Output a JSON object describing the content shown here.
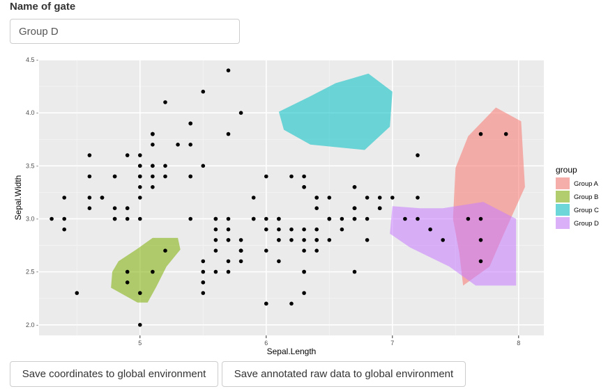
{
  "gate": {
    "label": "Name of gate",
    "value": "Group D"
  },
  "buttons": {
    "save_coordinates": "Save coordinates to global environment",
    "save_raw_data": "Save annotated raw data to global environment"
  },
  "chart_data": {
    "type": "scatter",
    "xlabel": "Sepal.Length",
    "ylabel": "Sepal.Width",
    "xlim": [
      4.2,
      8.2
    ],
    "ylim": [
      1.9,
      4.5
    ],
    "x_ticks": [
      5,
      6,
      7,
      8
    ],
    "x_tick_labels": [
      "5",
      "6",
      "7",
      "8"
    ],
    "y_ticks": [
      2.0,
      2.5,
      3.0,
      3.5,
      4.0,
      4.5
    ],
    "y_tick_labels": [
      "2.0 -",
      "2.5 -",
      "3.0 -",
      "3.5 -",
      "4.0 -",
      "4.5 -"
    ],
    "grid": true,
    "background": "#ebebeb",
    "legend_position": "right",
    "legend_title": "group",
    "points": [
      [
        5.1,
        3.5
      ],
      [
        4.9,
        3.0
      ],
      [
        4.7,
        3.2
      ],
      [
        4.6,
        3.1
      ],
      [
        5.0,
        3.6
      ],
      [
        5.4,
        3.9
      ],
      [
        4.6,
        3.4
      ],
      [
        5.0,
        3.4
      ],
      [
        4.4,
        2.9
      ],
      [
        4.9,
        3.1
      ],
      [
        5.4,
        3.7
      ],
      [
        4.8,
        3.4
      ],
      [
        4.8,
        3.0
      ],
      [
        4.3,
        3.0
      ],
      [
        5.8,
        4.0
      ],
      [
        5.7,
        4.4
      ],
      [
        5.4,
        3.9
      ],
      [
        5.1,
        3.5
      ],
      [
        5.7,
        3.8
      ],
      [
        5.1,
        3.8
      ],
      [
        5.4,
        3.4
      ],
      [
        5.1,
        3.7
      ],
      [
        4.6,
        3.6
      ],
      [
        5.1,
        3.3
      ],
      [
        4.8,
        3.4
      ],
      [
        5.0,
        3.0
      ],
      [
        5.0,
        3.4
      ],
      [
        5.2,
        3.5
      ],
      [
        5.2,
        3.4
      ],
      [
        4.7,
        3.2
      ],
      [
        4.8,
        3.1
      ],
      [
        5.4,
        3.4
      ],
      [
        5.2,
        4.1
      ],
      [
        5.5,
        4.2
      ],
      [
        4.9,
        3.1
      ],
      [
        5.0,
        3.2
      ],
      [
        5.5,
        3.5
      ],
      [
        4.9,
        3.6
      ],
      [
        4.4,
        3.0
      ],
      [
        5.1,
        3.4
      ],
      [
        5.0,
        3.5
      ],
      [
        4.5,
        2.3
      ],
      [
        4.4,
        3.2
      ],
      [
        5.0,
        3.5
      ],
      [
        5.1,
        3.8
      ],
      [
        4.8,
        3.0
      ],
      [
        5.1,
        3.8
      ],
      [
        4.6,
        3.2
      ],
      [
        5.3,
        3.7
      ],
      [
        5.0,
        3.3
      ],
      [
        7.0,
        3.2
      ],
      [
        6.4,
        3.2
      ],
      [
        6.9,
        3.1
      ],
      [
        5.5,
        2.3
      ],
      [
        6.5,
        2.8
      ],
      [
        5.7,
        2.8
      ],
      [
        6.3,
        3.3
      ],
      [
        4.9,
        2.4
      ],
      [
        6.6,
        2.9
      ],
      [
        5.2,
        2.7
      ],
      [
        5.0,
        2.0
      ],
      [
        5.9,
        3.0
      ],
      [
        6.0,
        2.2
      ],
      [
        6.1,
        2.9
      ],
      [
        5.6,
        2.9
      ],
      [
        6.7,
        3.1
      ],
      [
        5.6,
        3.0
      ],
      [
        5.8,
        2.7
      ],
      [
        6.2,
        2.2
      ],
      [
        5.6,
        2.5
      ],
      [
        5.9,
        3.2
      ],
      [
        6.1,
        2.8
      ],
      [
        6.3,
        2.5
      ],
      [
        6.1,
        2.8
      ],
      [
        6.4,
        2.9
      ],
      [
        6.6,
        3.0
      ],
      [
        6.8,
        2.8
      ],
      [
        6.7,
        3.0
      ],
      [
        6.0,
        2.9
      ],
      [
        5.7,
        2.6
      ],
      [
        5.5,
        2.4
      ],
      [
        5.5,
        2.4
      ],
      [
        5.8,
        2.7
      ],
      [
        6.0,
        2.7
      ],
      [
        5.4,
        3.0
      ],
      [
        6.0,
        3.4
      ],
      [
        6.7,
        3.1
      ],
      [
        6.3,
        2.3
      ],
      [
        5.6,
        3.0
      ],
      [
        5.5,
        2.5
      ],
      [
        5.5,
        2.6
      ],
      [
        6.1,
        3.0
      ],
      [
        5.8,
        2.6
      ],
      [
        5.0,
        2.3
      ],
      [
        5.6,
        2.7
      ],
      [
        5.7,
        3.0
      ],
      [
        5.7,
        2.9
      ],
      [
        6.2,
        2.9
      ],
      [
        5.1,
        2.5
      ],
      [
        5.7,
        2.8
      ],
      [
        6.3,
        3.3
      ],
      [
        5.8,
        2.7
      ],
      [
        7.1,
        3.0
      ],
      [
        6.3,
        2.9
      ],
      [
        6.5,
        3.0
      ],
      [
        7.6,
        3.0
      ],
      [
        4.9,
        2.5
      ],
      [
        7.3,
        2.9
      ],
      [
        6.7,
        2.5
      ],
      [
        7.2,
        3.6
      ],
      [
        6.5,
        3.2
      ],
      [
        6.4,
        2.7
      ],
      [
        6.8,
        3.0
      ],
      [
        5.7,
        2.5
      ],
      [
        5.8,
        2.8
      ],
      [
        6.4,
        3.2
      ],
      [
        6.5,
        3.0
      ],
      [
        7.7,
        3.8
      ],
      [
        7.7,
        2.6
      ],
      [
        6.0,
        2.2
      ],
      [
        6.9,
        3.2
      ],
      [
        5.6,
        2.8
      ],
      [
        7.7,
        2.8
      ],
      [
        6.3,
        2.7
      ],
      [
        6.7,
        3.3
      ],
      [
        7.2,
        3.2
      ],
      [
        6.2,
        2.8
      ],
      [
        6.1,
        3.0
      ],
      [
        6.4,
        2.8
      ],
      [
        7.2,
        3.0
      ],
      [
        7.4,
        2.8
      ],
      [
        7.9,
        3.8
      ],
      [
        6.4,
        2.8
      ],
      [
        6.3,
        2.8
      ],
      [
        6.1,
        2.6
      ],
      [
        7.7,
        3.0
      ],
      [
        6.3,
        3.4
      ],
      [
        6.4,
        3.1
      ],
      [
        6.0,
        3.0
      ],
      [
        6.9,
        3.1
      ],
      [
        6.7,
        3.1
      ],
      [
        6.9,
        3.1
      ],
      [
        5.8,
        2.7
      ],
      [
        6.8,
        3.2
      ],
      [
        6.7,
        3.3
      ],
      [
        6.7,
        3.0
      ],
      [
        6.3,
        2.5
      ],
      [
        6.5,
        3.0
      ],
      [
        6.2,
        3.4
      ],
      [
        5.9,
        3.0
      ]
    ],
    "gates": [
      {
        "name": "Group A",
        "color": "#f8766d",
        "polygon": [
          [
            7.6,
            3.78
          ],
          [
            7.82,
            4.05
          ],
          [
            8.02,
            3.92
          ],
          [
            8.05,
            3.3
          ],
          [
            7.88,
            2.85
          ],
          [
            7.77,
            2.55
          ],
          [
            7.56,
            2.37
          ],
          [
            7.53,
            2.68
          ],
          [
            7.48,
            3.0
          ],
          [
            7.5,
            3.48
          ]
        ]
      },
      {
        "name": "Group B",
        "color": "#7cae00",
        "polygon": [
          [
            4.83,
            2.6
          ],
          [
            4.97,
            2.71
          ],
          [
            5.1,
            2.82
          ],
          [
            5.3,
            2.82
          ],
          [
            5.32,
            2.71
          ],
          [
            5.21,
            2.55
          ],
          [
            5.13,
            2.36
          ],
          [
            5.06,
            2.21
          ],
          [
            4.98,
            2.21
          ],
          [
            4.77,
            2.35
          ],
          [
            4.78,
            2.5
          ]
        ]
      },
      {
        "name": "Group C",
        "color": "#00bfc4",
        "polygon": [
          [
            6.1,
            4.01
          ],
          [
            6.34,
            4.15
          ],
          [
            6.55,
            4.28
          ],
          [
            6.81,
            4.37
          ],
          [
            7.0,
            4.2
          ],
          [
            6.98,
            3.87
          ],
          [
            6.78,
            3.65
          ],
          [
            6.35,
            3.7
          ],
          [
            6.14,
            3.84
          ]
        ]
      },
      {
        "name": "Group D",
        "color": "#c77cff",
        "polygon": [
          [
            7.0,
            3.12
          ],
          [
            7.22,
            3.1
          ],
          [
            7.4,
            3.1
          ],
          [
            7.72,
            3.16
          ],
          [
            7.98,
            3.0
          ],
          [
            7.98,
            2.37
          ],
          [
            7.66,
            2.37
          ],
          [
            7.45,
            2.55
          ],
          [
            7.14,
            2.73
          ],
          [
            6.98,
            2.86
          ]
        ]
      }
    ]
  }
}
